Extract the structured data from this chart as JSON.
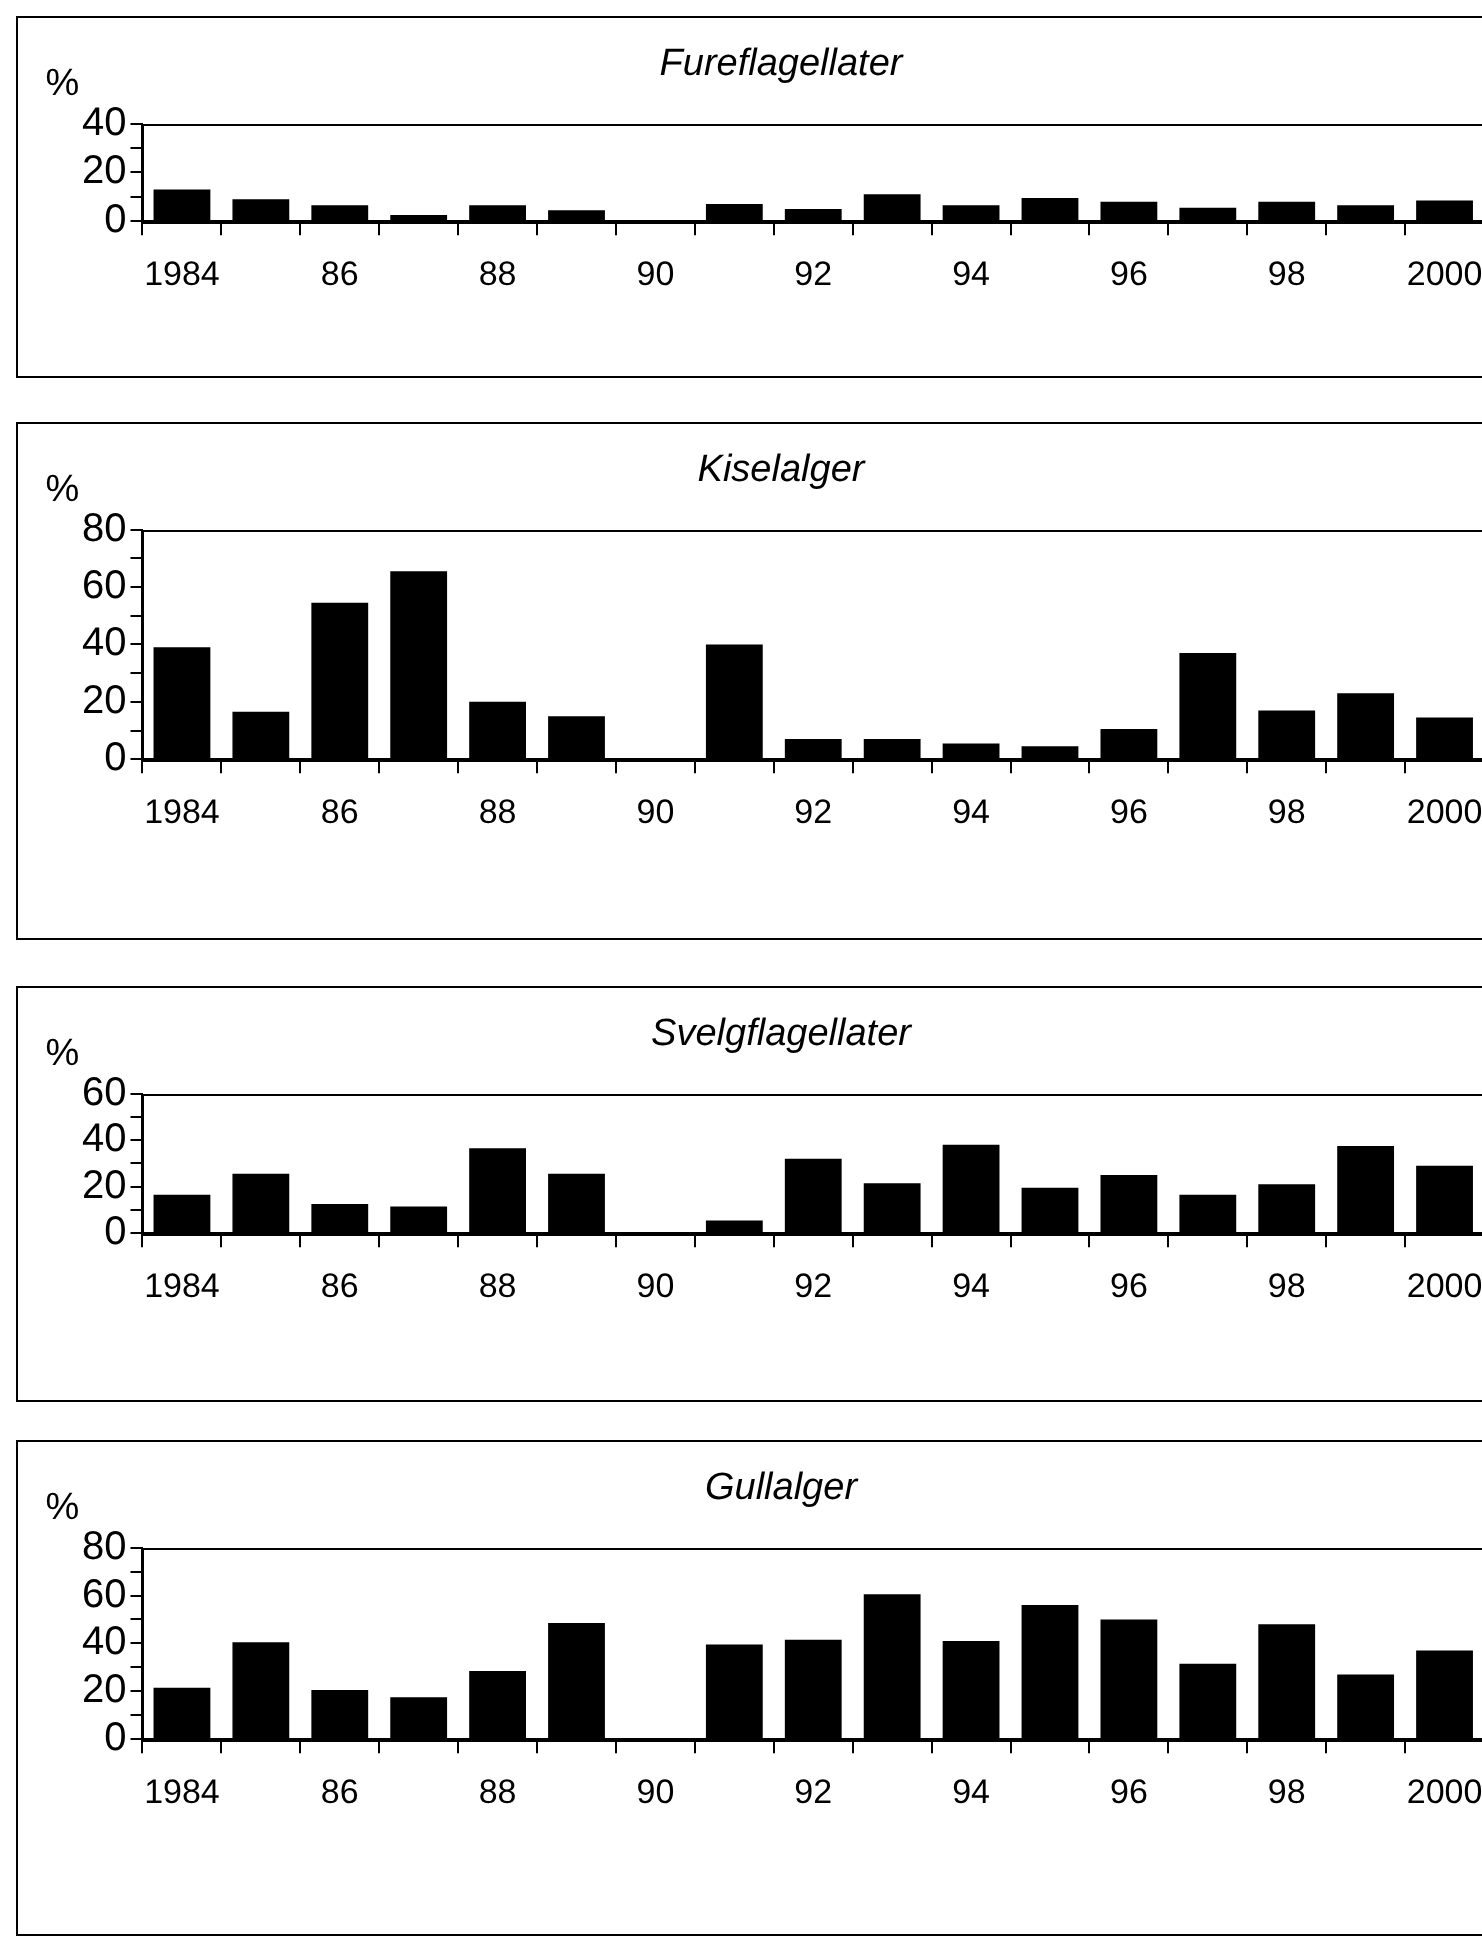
{
  "chart_data": [
    {
      "type": "bar",
      "title": "Fureflagellater",
      "ylabel": "%",
      "color": "#000000",
      "grid": false,
      "categories": [
        "1984",
        null,
        "86",
        null,
        "88",
        null,
        "90",
        null,
        "92",
        null,
        "94",
        null,
        "96",
        null,
        "98",
        null,
        "2000"
      ],
      "values": [
        13,
        9,
        6.5,
        2.5,
        6.5,
        4.5,
        null,
        7,
        5,
        11,
        6.5,
        9.5,
        8,
        5.5,
        8,
        6.5,
        8.5
      ],
      "ylim": [
        0,
        40
      ],
      "yticks": [
        0,
        {
          "value": 10,
          "label": null
        },
        20,
        {
          "value": 30,
          "label": null
        },
        40
      ]
    },
    {
      "type": "bar",
      "title": "Kiselalger",
      "ylabel": "%",
      "color": "#000000",
      "grid": false,
      "categories": [
        "1984",
        null,
        "86",
        null,
        "88",
        null,
        "90",
        null,
        "92",
        null,
        "94",
        null,
        "96",
        null,
        "98",
        null,
        "2000"
      ],
      "values": [
        39,
        16.5,
        54.5,
        65.5,
        20,
        15,
        null,
        40,
        7,
        7,
        5.5,
        4.5,
        10.5,
        37,
        17,
        23,
        14.5
      ],
      "ylim": [
        0,
        80
      ],
      "yticks": [
        0,
        {
          "value": 10,
          "label": null
        },
        20,
        {
          "value": 30,
          "label": null
        },
        40,
        {
          "value": 50,
          "label": null
        },
        60,
        {
          "value": 70,
          "label": null
        },
        80
      ]
    },
    {
      "type": "bar",
      "title": "Svelgflagellater",
      "ylabel": "%",
      "color": "#000000",
      "grid": false,
      "categories": [
        "1984",
        null,
        "86",
        null,
        "88",
        null,
        "90",
        null,
        "92",
        null,
        "94",
        null,
        "96",
        null,
        "98",
        null,
        "2000"
      ],
      "values": [
        16.5,
        25.5,
        12.5,
        11.5,
        36.5,
        25.5,
        null,
        5.5,
        32,
        21.5,
        38,
        19.5,
        25,
        16.5,
        21,
        37.5,
        29
      ],
      "ylim": [
        0,
        60
      ],
      "yticks": [
        0,
        {
          "value": 10,
          "label": null
        },
        20,
        {
          "value": 30,
          "label": null
        },
        40,
        {
          "value": 50,
          "label": null
        },
        60
      ]
    },
    {
      "type": "bar",
      "title": "Gullalger",
      "ylabel": "%",
      "color": "#000000",
      "grid": false,
      "categories": [
        "1984",
        null,
        "86",
        null,
        "88",
        null,
        "90",
        null,
        "92",
        null,
        "94",
        null,
        "96",
        null,
        "98",
        null,
        "2000"
      ],
      "values": [
        21.5,
        40.5,
        20.5,
        17.5,
        28.5,
        48.5,
        null,
        39.5,
        41.5,
        60.5,
        41,
        56,
        50,
        31.5,
        48,
        27,
        37
      ],
      "ylim": [
        0,
        80
      ],
      "yticks": [
        0,
        {
          "value": 10,
          "label": null
        },
        20,
        {
          "value": 30,
          "label": null
        },
        40,
        {
          "value": 50,
          "label": null
        },
        60,
        {
          "value": 70,
          "label": null
        },
        80
      ]
    }
  ]
}
